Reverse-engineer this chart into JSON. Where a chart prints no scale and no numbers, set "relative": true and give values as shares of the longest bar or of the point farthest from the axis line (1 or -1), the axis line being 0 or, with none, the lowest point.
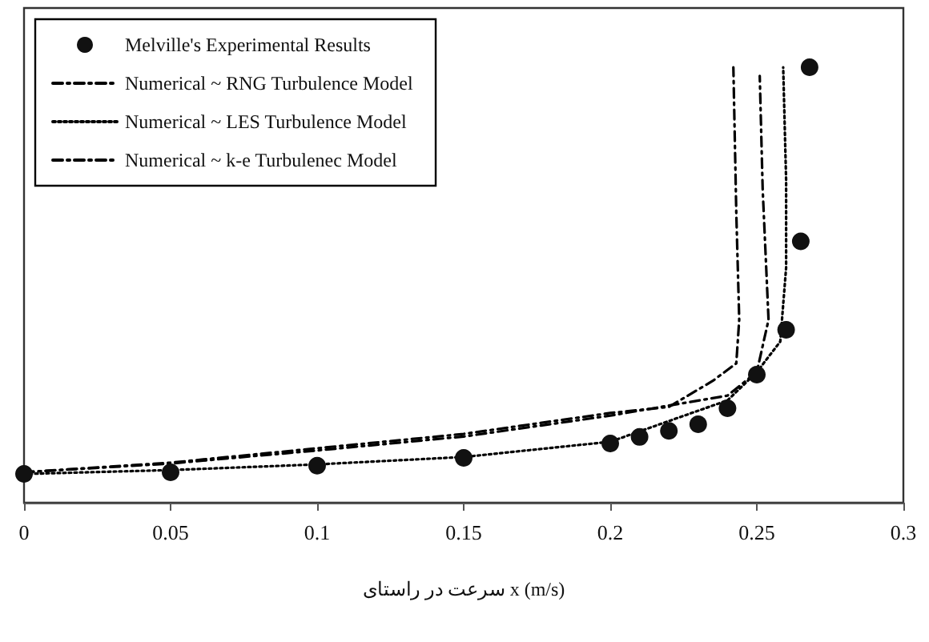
{
  "chart_data": {
    "type": "line",
    "relative": true,
    "xlabel": "سرعت در راستای x (m/s)",
    "xlim": [
      0,
      0.3
    ],
    "xticks": [
      0,
      0.05,
      0.1,
      0.15,
      0.2,
      0.25,
      0.3
    ],
    "grid": false,
    "legend": "top left",
    "series": [
      {
        "name": "Melville's Experimental Results",
        "type": "scatter",
        "marker": "circle",
        "color": "#111111",
        "x": [
          0,
          0.05,
          0.1,
          0.15,
          0.2,
          0.21,
          0.22,
          0.23,
          0.24,
          0.25,
          0.26,
          0.265,
          0.268
        ],
        "values": [
          0.066,
          0.07,
          0.085,
          0.103,
          0.136,
          0.151,
          0.165,
          0.18,
          0.217,
          0.294,
          0.397,
          0.6,
          1.0
        ]
      },
      {
        "name": "Numerical ~ RNG Turbulence Model",
        "marker": "none",
        "line_style": "dashed",
        "color": "#000000",
        "x": [
          0,
          0.05,
          0.1,
          0.15,
          0.2,
          0.24,
          0.25,
          0.254,
          0.252,
          0.251
        ],
        "values": [
          0.07,
          0.09,
          0.12,
          0.152,
          0.2,
          0.246,
          0.3,
          0.42,
          0.72,
          0.98
        ]
      },
      {
        "name": "Numerical ~ LES Turbulence Model",
        "marker": "none",
        "line_style": "dotted",
        "color": "#000000",
        "x": [
          0,
          0.05,
          0.1,
          0.15,
          0.2,
          0.24,
          0.25,
          0.258,
          0.26,
          0.26,
          0.259
        ],
        "values": [
          0.066,
          0.075,
          0.088,
          0.105,
          0.14,
          0.235,
          0.3,
          0.37,
          0.54,
          0.74,
          1.0
        ]
      },
      {
        "name": "Numerical ~ k-e Turbulenec Model",
        "marker": "none",
        "line_style": "dashed",
        "color": "#000000",
        "x": [
          0,
          0.05,
          0.1,
          0.15,
          0.2,
          0.22,
          0.235,
          0.243,
          0.244,
          0.243,
          0.242
        ],
        "values": [
          0.07,
          0.092,
          0.125,
          0.158,
          0.206,
          0.22,
          0.28,
          0.32,
          0.42,
          0.665,
          1.0
        ]
      }
    ]
  }
}
